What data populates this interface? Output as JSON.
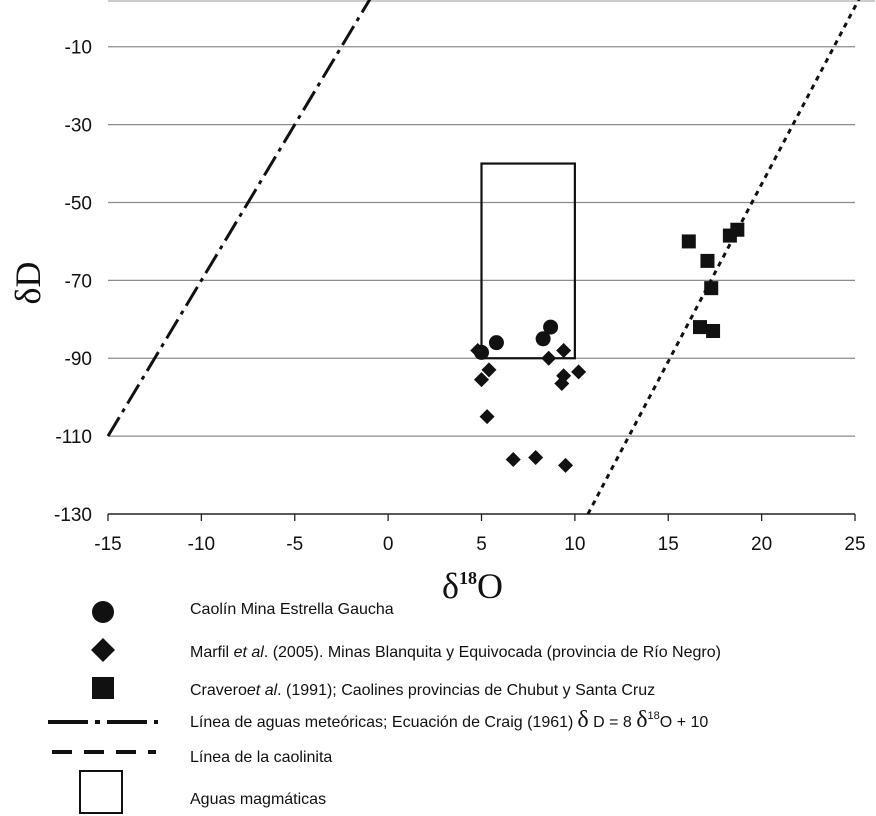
{
  "chart_data": {
    "type": "scatter",
    "xlabel": "δ",
    "xlabel_sup": "18",
    "xlabel_tail": "O",
    "ylabel": "δD",
    "xlim": [
      -15,
      25
    ],
    "ylim": [
      -130,
      2
    ],
    "x_ticks": [
      -15,
      -10,
      -5,
      0,
      5,
      10,
      15,
      20,
      25
    ],
    "y_ticks": [
      -10,
      -30,
      -50,
      -70,
      -90,
      -110,
      -130
    ],
    "x_tick_labels": [
      "-15",
      "-10",
      "-5",
      "0",
      "5",
      "10",
      "15",
      "20",
      "25"
    ],
    "y_tick_labels": [
      "-10",
      "-30",
      "-50",
      "-70",
      "-90",
      "-110",
      "-130"
    ],
    "grid": "horizontal",
    "legend_position": "bottom",
    "series": [
      {
        "name": "Caolín Mina Estrella Gaucha",
        "marker": "circle",
        "points": [
          [
            5.0,
            -88.5
          ],
          [
            5.8,
            -86
          ],
          [
            8.3,
            -85
          ],
          [
            8.7,
            -82
          ]
        ]
      },
      {
        "name": "Marfil et al. (2005). Minas Blanquita y Equivocada (provincia de Río Negro)",
        "marker": "diamond",
        "points": [
          [
            4.8,
            -88
          ],
          [
            5.0,
            -95.5
          ],
          [
            5.4,
            -93
          ],
          [
            5.3,
            -105
          ],
          [
            6.7,
            -116
          ],
          [
            7.9,
            -115.5
          ],
          [
            8.6,
            -90
          ],
          [
            9.4,
            -88
          ],
          [
            9.4,
            -94.5
          ],
          [
            9.3,
            -96.5
          ],
          [
            10.2,
            -93.5
          ],
          [
            9.5,
            -117.5
          ]
        ]
      },
      {
        "name": "Cravero et al. (1991); Caolines provincias de Chubut y Santa Cruz",
        "marker": "square",
        "points": [
          [
            16.1,
            -60
          ],
          [
            17.1,
            -65
          ],
          [
            18.3,
            -58.5
          ],
          [
            18.7,
            -57
          ],
          [
            17.3,
            -72
          ],
          [
            16.7,
            -82
          ],
          [
            17.4,
            -83
          ]
        ]
      }
    ],
    "lines": [
      {
        "name": "Línea de aguas meteóricas; Ecuación de Craig (1961)",
        "style": "dash-dot",
        "equation": "δD = 8 δ18O + 10",
        "x": [
          -15,
          1.3
        ]
      },
      {
        "name": "Línea de la caolinita",
        "style": "dotted",
        "x": [
          10.7,
          25.3
        ],
        "y": [
          -130,
          3
        ]
      }
    ],
    "rectangles": [
      {
        "name": "Aguas magmáticas",
        "x": [
          5,
          10
        ],
        "y": [
          -90,
          -40
        ]
      }
    ]
  },
  "legend": {
    "circle_label": "Caolín Mina Estrella Gaucha",
    "diamond_label_a": "Marfil ",
    "diamond_label_b": "et al",
    "diamond_label_c": ". (2005). Minas Blanquita y Equivocada (provincia de Río Negro)",
    "square_label_a": "Cravero",
    "square_label_b": "et al",
    "square_label_c": ". (1991); Caolines provincias de Chubut y Santa Cruz",
    "meteoric_label": "Línea de aguas meteóricas; Ecuación de Craig (1961)",
    "meteoric_delta_1": "δ",
    "meteoric_eq_1": " D = 8 ",
    "meteoric_delta_2": "δ",
    "meteoric_sup": "18",
    "meteoric_eq_2": "O + 10",
    "kaolinite_label": "Línea de la caolinita",
    "magmatic_label": "Aguas magmáticas"
  }
}
